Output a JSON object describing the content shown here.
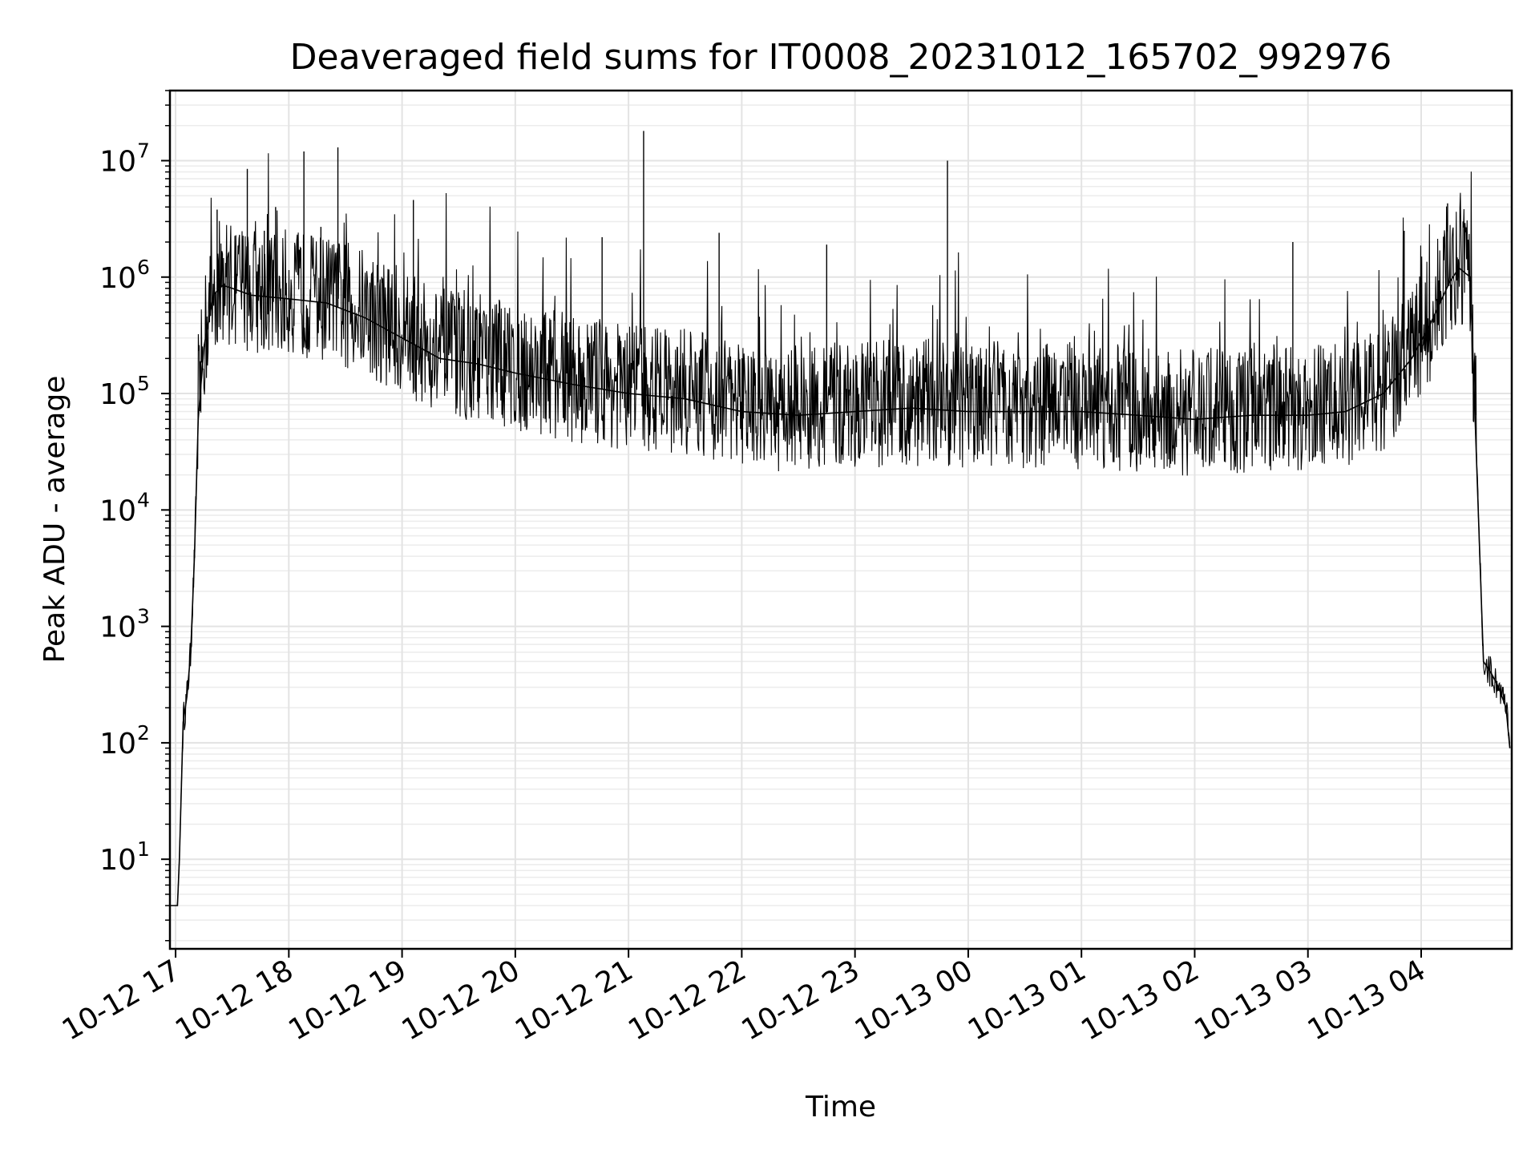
{
  "chart_data": {
    "type": "line",
    "title": "Deaveraged field sums for IT0008_20231012_165702_992976",
    "xlabel": "Time",
    "ylabel": "Peak ADU - average",
    "yscale": "log",
    "ylim": [
      1.7,
      40000000
    ],
    "xlim": [
      "2023-10-12 16:57",
      "2023-10-13 04:48"
    ],
    "grid": "major and minor",
    "line_color": "#000000",
    "x_ticks": [
      {
        "t": "2023-10-12 17:00",
        "label": "10-12 17"
      },
      {
        "t": "2023-10-12 18:00",
        "label": "10-12 18"
      },
      {
        "t": "2023-10-12 19:00",
        "label": "10-12 19"
      },
      {
        "t": "2023-10-12 20:00",
        "label": "10-12 20"
      },
      {
        "t": "2023-10-12 21:00",
        "label": "10-12 21"
      },
      {
        "t": "2023-10-12 22:00",
        "label": "10-12 22"
      },
      {
        "t": "2023-10-12 23:00",
        "label": "10-12 23"
      },
      {
        "t": "2023-10-13 00:00",
        "label": "10-13 00"
      },
      {
        "t": "2023-10-13 01:00",
        "label": "10-13 01"
      },
      {
        "t": "2023-10-13 02:00",
        "label": "10-13 02"
      },
      {
        "t": "2023-10-13 03:00",
        "label": "10-13 03"
      },
      {
        "t": "2023-10-13 04:00",
        "label": "10-13 04"
      }
    ],
    "y_ticks": [
      {
        "value": 10,
        "base": "10",
        "exp": "1"
      },
      {
        "value": 100,
        "base": "10",
        "exp": "2"
      },
      {
        "value": 1000,
        "base": "10",
        "exp": "3"
      },
      {
        "value": 10000,
        "base": "10",
        "exp": "4"
      },
      {
        "value": 100000,
        "base": "10",
        "exp": "5"
      },
      {
        "value": 1000000,
        "base": "10",
        "exp": "6"
      },
      {
        "value": 10000000,
        "base": "10",
        "exp": "7"
      }
    ],
    "series": [
      {
        "x": [
          "2023-10-12 16:57",
          "2023-10-12 17:01",
          "2023-10-12 17:02",
          "2023-10-12 17:04",
          "2023-10-12 17:06",
          "2023-10-12 17:08",
          "2023-10-12 17:10",
          "2023-10-12 17:12",
          "2023-10-12 17:15",
          "2023-10-12 17:20",
          "2023-10-12 17:25",
          "2023-10-12 17:30",
          "2023-10-12 17:40",
          "2023-10-12 18:00",
          "2023-10-12 18:20",
          "2023-10-12 18:40",
          "2023-10-12 19:00",
          "2023-10-12 19:20",
          "2023-10-12 19:40",
          "2023-10-12 20:00",
          "2023-10-12 20:30",
          "2023-10-12 21:00",
          "2023-10-12 21:30",
          "2023-10-12 22:00",
          "2023-10-12 22:30",
          "2023-10-12 23:00",
          "2023-10-12 23:30",
          "2023-10-13 00:00",
          "2023-10-13 00:30",
          "2023-10-13 01:00",
          "2023-10-13 01:30",
          "2023-10-13 02:00",
          "2023-10-13 02:30",
          "2023-10-13 03:00",
          "2023-10-13 03:20",
          "2023-10-13 03:40",
          "2023-10-13 03:55",
          "2023-10-13 04:05",
          "2023-10-13 04:15",
          "2023-10-13 04:20",
          "2023-10-13 04:26",
          "2023-10-13 04:33",
          "2023-10-13 04:37",
          "2023-10-13 04:41",
          "2023-10-13 04:45",
          "2023-10-13 04:47"
        ],
        "y": [
          4,
          4,
          10,
          150,
          250,
          600,
          4000,
          60000,
          250000,
          700000,
          850000,
          800000,
          700000,
          650000,
          600000,
          450000,
          300000,
          200000,
          180000,
          150000,
          120000,
          100000,
          90000,
          70000,
          65000,
          70000,
          75000,
          70000,
          70000,
          70000,
          65000,
          60000,
          65000,
          65000,
          70000,
          100000,
          200000,
          400000,
          900000,
          1200000,
          1000000,
          500,
          400,
          300,
          200,
          90
        ]
      }
    ],
    "spikes": [
      {
        "x": "2023-10-12 17:22",
        "y": 3800000
      },
      {
        "x": "2023-10-12 17:38",
        "y": 8500000
      },
      {
        "x": "2023-10-12 17:47",
        "y": 2500000
      },
      {
        "x": "2023-10-12 17:53",
        "y": 4000000
      },
      {
        "x": "2023-10-12 18:08",
        "y": 12000000
      },
      {
        "x": "2023-10-12 18:17",
        "y": 2700000
      },
      {
        "x": "2023-10-12 18:26",
        "y": 13000000
      },
      {
        "x": "2023-10-12 19:06",
        "y": 4600000
      },
      {
        "x": "2023-10-12 20:46",
        "y": 2200000
      },
      {
        "x": "2023-10-12 21:08",
        "y": 18000000
      },
      {
        "x": "2023-10-12 21:48",
        "y": 2400000
      },
      {
        "x": "2023-10-12 22:45",
        "y": 1900000
      },
      {
        "x": "2023-10-12 23:49",
        "y": 10000000
      },
      {
        "x": "2023-10-13 02:52",
        "y": 2000000
      },
      {
        "x": "2023-10-13 03:51",
        "y": 2500000
      },
      {
        "x": "2023-10-13 04:14",
        "y": 4300000
      }
    ]
  }
}
